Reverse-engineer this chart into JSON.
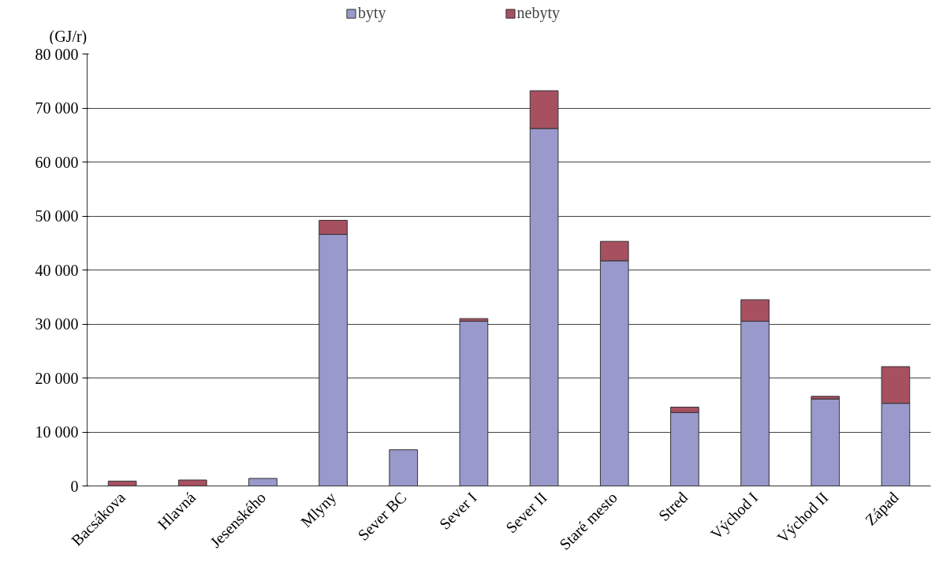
{
  "chart_data": {
    "type": "bar",
    "stacked": true,
    "ylabel": "(GJ/r)",
    "categories": [
      "Bacsákova",
      "Hlavná",
      "Jesenského",
      "Mlyny",
      "Sever BC",
      "Sever I",
      "Sever II",
      "Staré mesto",
      "Stred",
      "Východ I",
      "Východ II",
      "Západ"
    ],
    "series": [
      {
        "name": "byty",
        "color": "#9999cc",
        "values": [
          0,
          0,
          1400,
          46600,
          6700,
          30500,
          66200,
          41700,
          13600,
          30500,
          16100,
          15300
        ]
      },
      {
        "name": "nebyty",
        "color": "#a65060",
        "values": [
          900,
          1100,
          0,
          2600,
          0,
          500,
          7000,
          3600,
          1000,
          4000,
          500,
          6800
        ]
      }
    ],
    "ylim": [
      0,
      80000
    ],
    "yticks": [
      0,
      {
        "value": 10000,
        "label": "10 000"
      },
      {
        "value": 20000,
        "label": "20 000"
      },
      {
        "value": 30000,
        "label": "30 000"
      },
      {
        "value": 40000,
        "label": "40 000"
      },
      {
        "value": 50000,
        "label": "50 000"
      },
      {
        "value": 60000,
        "label": "60 000"
      },
      {
        "value": 70000,
        "label": "70 000"
      },
      {
        "value": 80000,
        "label": "80 000"
      }
    ],
    "grid": "y",
    "legend": "top"
  }
}
